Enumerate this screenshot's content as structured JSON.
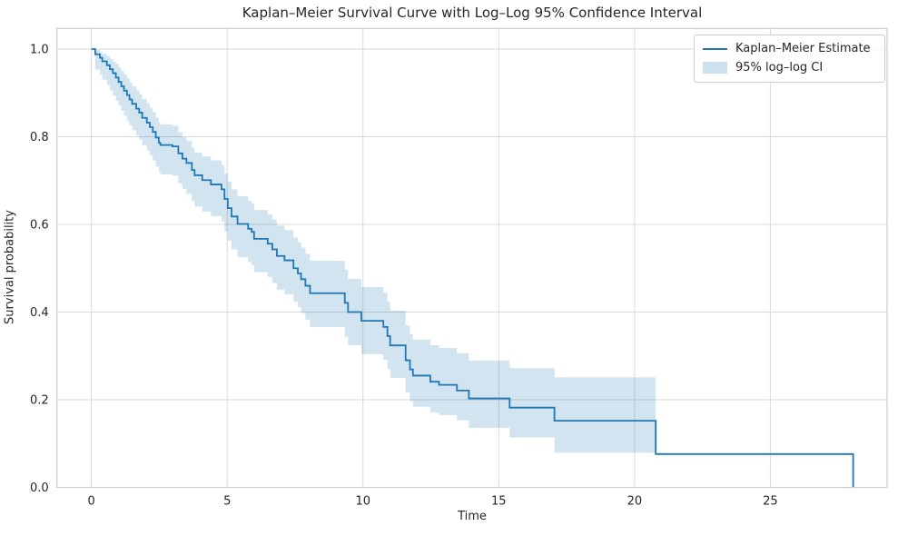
{
  "chart_data": {
    "type": "line",
    "subtype": "kaplan-meier-step",
    "title": "Kaplan–Meier Survival Curve with Log–Log 95% Confidence Interval",
    "xlabel": "Time",
    "ylabel": "Survival probability",
    "xlim": [
      -1.27,
      29.3
    ],
    "ylim": [
      0,
      1.047
    ],
    "xticks": [
      0,
      5,
      10,
      15,
      20,
      25
    ],
    "yticks": [
      0.0,
      0.2,
      0.4,
      0.6,
      0.8,
      1.0
    ],
    "grid": true,
    "colors": {
      "line": "#1f77b4",
      "band_fill": "rgba(31,119,180,0.2)",
      "grid": "#d9d9d9",
      "spine": "#cbcbcb",
      "text": "#262626"
    },
    "legend": {
      "position": "upper right",
      "entries": [
        {
          "label": "Kaplan–Meier Estimate",
          "type": "line",
          "color": "#1f77b4"
        },
        {
          "label": "95% log–log CI",
          "type": "patch",
          "color": "rgba(31,119,180,0.2)"
        }
      ]
    },
    "band_end_time": 20.78,
    "steps_format": [
      "time",
      "survival",
      "ci_lower",
      "ci_upper"
    ],
    "steps": [
      [
        0.0,
        1.0,
        null,
        null
      ],
      [
        0.14,
        0.988,
        0.953,
        0.998
      ],
      [
        0.31,
        0.98,
        0.942,
        0.993
      ],
      [
        0.4,
        0.972,
        0.93,
        0.989
      ],
      [
        0.57,
        0.963,
        0.918,
        0.984
      ],
      [
        0.68,
        0.954,
        0.906,
        0.978
      ],
      [
        0.79,
        0.945,
        0.894,
        0.972
      ],
      [
        0.9,
        0.935,
        0.882,
        0.966
      ],
      [
        1.0,
        0.925,
        0.871,
        0.958
      ],
      [
        1.1,
        0.915,
        0.859,
        0.95
      ],
      [
        1.2,
        0.905,
        0.848,
        0.942
      ],
      [
        1.31,
        0.895,
        0.837,
        0.933
      ],
      [
        1.4,
        0.885,
        0.826,
        0.924
      ],
      [
        1.5,
        0.875,
        0.815,
        0.915
      ],
      [
        1.65,
        0.864,
        0.803,
        0.906
      ],
      [
        1.76,
        0.855,
        0.793,
        0.897
      ],
      [
        1.87,
        0.843,
        0.78,
        0.886
      ],
      [
        2.04,
        0.832,
        0.768,
        0.876
      ],
      [
        2.15,
        0.822,
        0.757,
        0.866
      ],
      [
        2.26,
        0.811,
        0.746,
        0.856
      ],
      [
        2.37,
        0.798,
        0.732,
        0.844
      ],
      [
        2.48,
        0.786,
        0.719,
        0.833
      ],
      [
        2.54,
        0.781,
        0.714,
        0.828
      ],
      [
        2.98,
        0.778,
        0.711,
        0.825
      ],
      [
        3.2,
        0.762,
        0.693,
        0.81
      ],
      [
        3.35,
        0.75,
        0.681,
        0.799
      ],
      [
        3.5,
        0.74,
        0.67,
        0.79
      ],
      [
        3.7,
        0.724,
        0.653,
        0.775
      ],
      [
        3.8,
        0.712,
        0.641,
        0.764
      ],
      [
        4.08,
        0.701,
        0.629,
        0.755
      ],
      [
        4.4,
        0.691,
        0.619,
        0.746
      ],
      [
        4.79,
        0.68,
        0.607,
        0.736
      ],
      [
        4.9,
        0.658,
        0.584,
        0.716
      ],
      [
        5.02,
        0.637,
        0.563,
        0.697
      ],
      [
        5.16,
        0.618,
        0.543,
        0.68
      ],
      [
        5.38,
        0.601,
        0.525,
        0.664
      ],
      [
        5.77,
        0.59,
        0.514,
        0.654
      ],
      [
        5.9,
        0.583,
        0.507,
        0.648
      ],
      [
        5.99,
        0.567,
        0.491,
        0.633
      ],
      [
        6.49,
        0.556,
        0.48,
        0.623
      ],
      [
        6.66,
        0.543,
        0.466,
        0.611
      ],
      [
        6.83,
        0.528,
        0.451,
        0.597
      ],
      [
        7.11,
        0.518,
        0.441,
        0.587
      ],
      [
        7.44,
        0.5,
        0.423,
        0.57
      ],
      [
        7.6,
        0.488,
        0.411,
        0.559
      ],
      [
        7.72,
        0.475,
        0.398,
        0.547
      ],
      [
        7.88,
        0.46,
        0.383,
        0.533
      ],
      [
        8.05,
        0.443,
        0.366,
        0.517
      ],
      [
        9.33,
        0.421,
        0.344,
        0.496
      ],
      [
        9.45,
        0.4,
        0.324,
        0.476
      ],
      [
        9.94,
        0.38,
        0.304,
        0.457
      ],
      [
        10.75,
        0.366,
        0.291,
        0.444
      ],
      [
        10.9,
        0.345,
        0.27,
        0.423
      ],
      [
        11.0,
        0.324,
        0.25,
        0.403
      ],
      [
        11.57,
        0.29,
        0.217,
        0.37
      ],
      [
        11.73,
        0.269,
        0.197,
        0.35
      ],
      [
        11.84,
        0.255,
        0.184,
        0.337
      ],
      [
        12.48,
        0.241,
        0.171,
        0.324
      ],
      [
        12.8,
        0.234,
        0.165,
        0.318
      ],
      [
        13.46,
        0.221,
        0.153,
        0.306
      ],
      [
        13.9,
        0.203,
        0.136,
        0.289
      ],
      [
        15.4,
        0.182,
        0.114,
        0.272
      ],
      [
        17.05,
        0.152,
        0.079,
        0.251
      ],
      [
        20.78,
        0.076,
        null,
        null
      ],
      [
        28.05,
        0.0,
        null,
        null
      ]
    ]
  }
}
